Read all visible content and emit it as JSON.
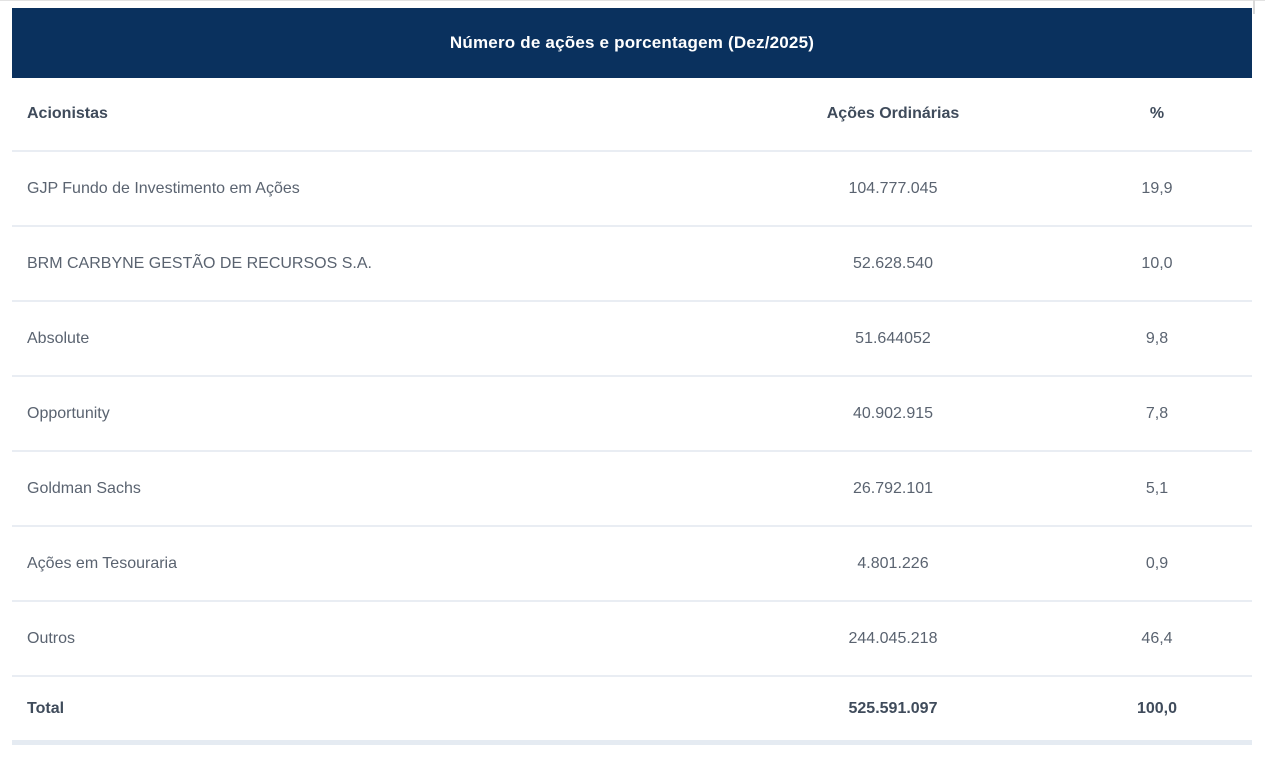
{
  "title_bar": {
    "title": "Número de ações e porcentagem (Dez/2025)",
    "background": "#0a315e",
    "text_color": "#ffffff"
  },
  "table": {
    "columns": {
      "shareholders": "Acionistas",
      "ordinary_shares": "Ações Ordinárias",
      "percent": "%"
    },
    "rows": [
      {
        "acionista": "GJP Fundo de Investimento em Ações",
        "acoes": "104.777.045",
        "pct": "19,9"
      },
      {
        "acionista": "BRM CARBYNE GESTÃO DE RECURSOS S.A.",
        "acoes": "52.628.540",
        "pct": "10,0"
      },
      {
        "acionista": "Absolute",
        "acoes": "51.644052",
        "pct": "9,8"
      },
      {
        "acionista": "Opportunity",
        "acoes": "40.902.915",
        "pct": "7,8"
      },
      {
        "acionista": "Goldman Sachs",
        "acoes": "26.792.101",
        "pct": "5,1"
      },
      {
        "acionista": "Ações em Tesouraria",
        "acoes": "4.801.226",
        "pct": "0,9"
      },
      {
        "acionista": "Outros",
        "acoes": "244.045.218",
        "pct": "46,4"
      }
    ],
    "total": {
      "label": "Total",
      "acoes": "525.591.097",
      "pct": "100,0"
    }
  },
  "colors": {
    "accent_navy": "#0a315e",
    "divider": "#e9edf3",
    "bottom_divider": "#e5ebf2",
    "header_text": "#3f4b5b",
    "body_text": "#5a6370"
  }
}
